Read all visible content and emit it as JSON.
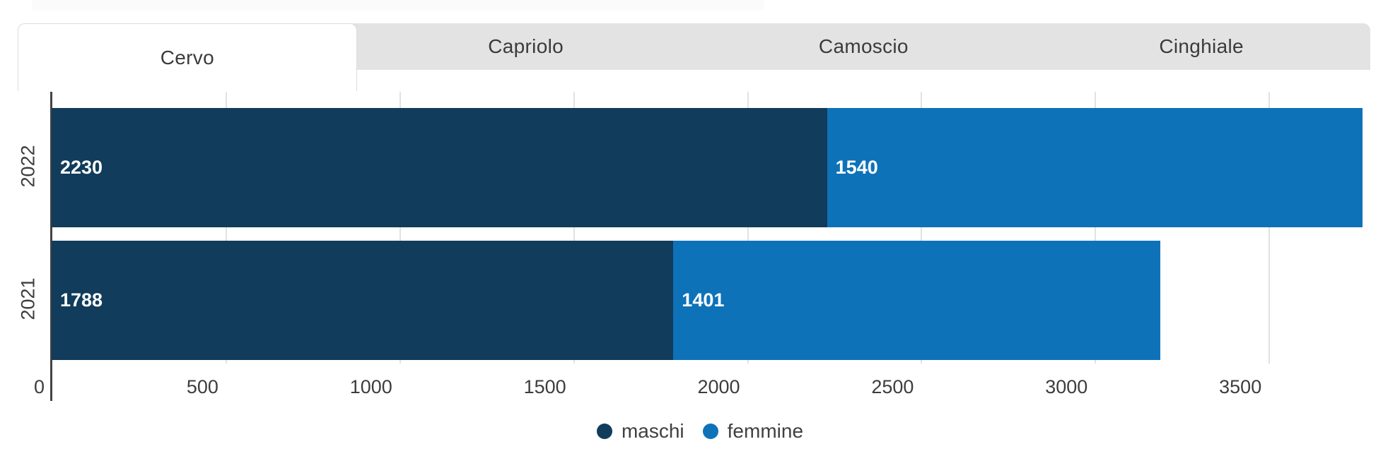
{
  "tabs": [
    {
      "label": "Cervo",
      "active": true
    },
    {
      "label": "Capriolo",
      "active": false
    },
    {
      "label": "Camoscio",
      "active": false
    },
    {
      "label": "Cinghiale",
      "active": false
    }
  ],
  "chart_data": {
    "type": "bar",
    "orientation": "horizontal",
    "stacked": true,
    "categories": [
      "2022",
      "2021"
    ],
    "series": [
      {
        "name": "maschi",
        "color": "#113C5B",
        "values": [
          2230,
          1788
        ]
      },
      {
        "name": "femmine",
        "color": "#0E72B9",
        "values": [
          1540,
          1401
        ]
      }
    ],
    "totals": [
      3770,
      3189
    ],
    "xlim": [
      0,
      3770
    ],
    "xticks": [
      0,
      500,
      1000,
      1500,
      2000,
      2500,
      3000,
      3500
    ],
    "grid": true,
    "value_labels": "inside-start",
    "legend_position": "bottom"
  },
  "legend": [
    {
      "label": "maschi",
      "color": "#113C5B"
    },
    {
      "label": "femmine",
      "color": "#0E72B9"
    }
  ],
  "colors": {
    "maschi": "#113C5B",
    "femmine": "#0E72B9",
    "tab_inactive_bg": "#e3e3e3",
    "tab_text": "#3b3b3b",
    "axis": "#444444",
    "gridline": "#e2e2e2",
    "tick_text": "#3d3d3d",
    "bar_label_text": "#ffffff"
  }
}
